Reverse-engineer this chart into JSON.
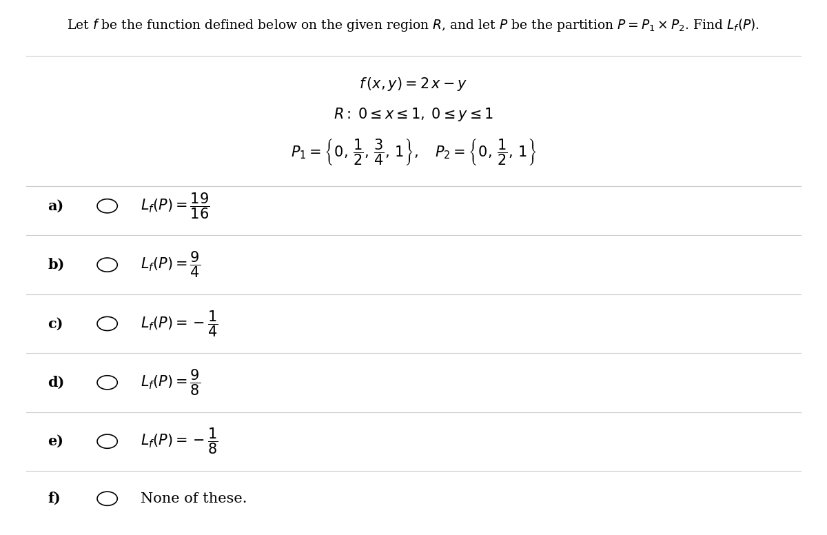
{
  "background_color": "#ffffff",
  "header_text": "Let $f$ be the function defined below on the given region $R$, and let $P$ be the partition $P = P_1 \\times P_2$. Find $L_f(P)$.",
  "function_text": "$f\\,(x, y) = 2\\,x - y$",
  "region_text": "$R:\\; 0 \\leq x \\leq 1,\\; 0 \\leq y \\leq 1$",
  "partition_text": "$P_1 = \\left\\{0,\\, \\dfrac{1}{2},\\, \\dfrac{3}{4},\\, 1\\right\\},\\quad P_2 = \\left\\{0,\\, \\dfrac{1}{2},\\, 1\\right\\}$",
  "options": [
    {
      "label": "a)",
      "text": "$L_f(P) = \\dfrac{19}{16}$"
    },
    {
      "label": "b)",
      "text": "$L_f(P) = \\dfrac{9}{4}$"
    },
    {
      "label": "c)",
      "text": "$L_f(P) = -\\dfrac{1}{4}$"
    },
    {
      "label": "d)",
      "text": "$L_f(P) = \\dfrac{9}{8}$"
    },
    {
      "label": "e)",
      "text": "$L_f(P) = -\\dfrac{1}{8}$"
    },
    {
      "label": "f)",
      "text": "None of these."
    }
  ],
  "header_fontsize": 13.5,
  "body_fontsize": 15,
  "option_fontsize": 15,
  "option_label_fontsize": 15,
  "divider_color": "#cccccc",
  "divider_linewidth": 0.8
}
